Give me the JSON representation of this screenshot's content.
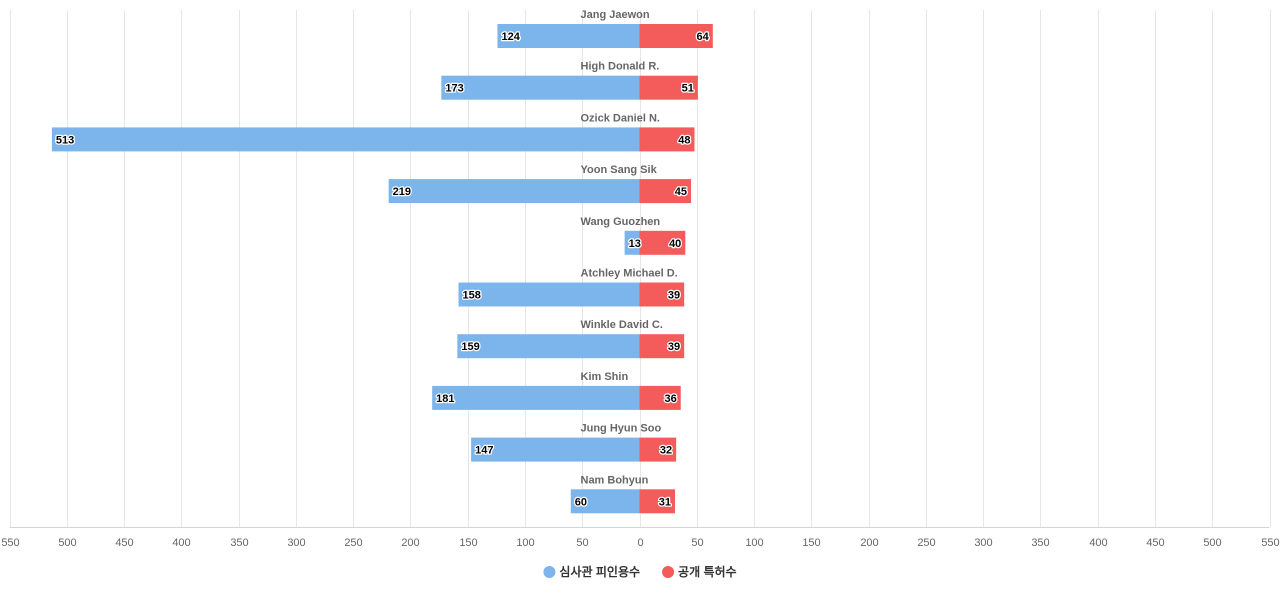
{
  "chart_data": {
    "type": "bar",
    "orientation": "horizontal-diverging",
    "categories": [
      "Jang Jaewon",
      "High Donald R.",
      "Ozick Daniel N.",
      "Yoon Sang Sik",
      "Wang Guozhen",
      "Atchley Michael D.",
      "Winkle David C.",
      "Kim Shin",
      "Jung Hyun Soo",
      "Nam Bohyun"
    ],
    "series": [
      {
        "name": "심사관 피인용수",
        "direction": "left",
        "color": "#7cb5ec",
        "values": [
          124,
          173,
          513,
          219,
          13,
          158,
          159,
          181,
          147,
          60
        ]
      },
      {
        "name": "공개 특허수",
        "direction": "right",
        "color": "#f45b5b",
        "values": [
          64,
          51,
          48,
          45,
          40,
          39,
          39,
          36,
          32,
          31
        ]
      }
    ],
    "xlim": [
      -550,
      550
    ],
    "tick_step": 50,
    "tick_labels": [
      "550",
      "500",
      "450",
      "400",
      "350",
      "300",
      "250",
      "200",
      "150",
      "100",
      "50",
      "0",
      "50",
      "100",
      "150",
      "200",
      "250",
      "300",
      "350",
      "400",
      "450",
      "500",
      "550"
    ],
    "grid": true,
    "legend_position": "bottom-center",
    "title": "",
    "xlabel": "",
    "ylabel": ""
  }
}
